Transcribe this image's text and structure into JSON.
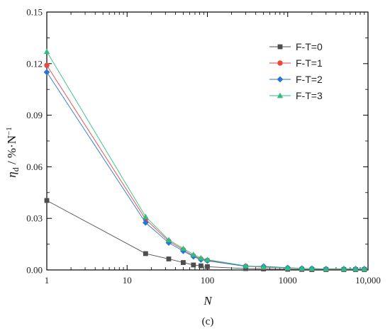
{
  "chart_data": {
    "type": "line",
    "x_scale": "log",
    "xlim": [
      1,
      10000
    ],
    "ylim": [
      0,
      0.15
    ],
    "xlabel": "N",
    "ylabel": "η_d / %·N⁻¹",
    "ylabel_parts": {
      "symbol": "η",
      "subscript": "d",
      "unit": " / %·N",
      "unit_sup": "−1"
    },
    "panel_label": "(c)",
    "grid": false,
    "legend_position": "top-right",
    "x_ticks": [
      {
        "value": 1,
        "label": "1"
      },
      {
        "value": 10,
        "label": "10"
      },
      {
        "value": 100,
        "label": "100"
      },
      {
        "value": 1000,
        "label": "1000"
      },
      {
        "value": 10000,
        "label": "10,000"
      }
    ],
    "y_ticks": [
      {
        "value": 0,
        "label": "0.00"
      },
      {
        "value": 0.03,
        "label": "0.03"
      },
      {
        "value": 0.06,
        "label": "0.06"
      },
      {
        "value": 0.09,
        "label": "0.09"
      },
      {
        "value": 0.12,
        "label": "0.12"
      },
      {
        "value": 0.15,
        "label": "0.15"
      }
    ],
    "series": [
      {
        "name": "F-T=0",
        "color": "#4d4d4d",
        "marker": "square",
        "x": [
          1,
          17,
          33,
          50,
          67,
          83,
          100,
          300,
          500,
          1000,
          1500,
          2000,
          3000,
          5000,
          7000,
          9000
        ],
        "y": [
          0.0404,
          0.0095,
          0.0064,
          0.0043,
          0.0029,
          0.0024,
          0.0019,
          0.0008,
          0.0006,
          0.0004,
          0.0003,
          0.0002,
          0.0002,
          0.0002,
          0.0002,
          0.0002
        ]
      },
      {
        "name": "F-T=1",
        "color": "#e8463e",
        "marker": "circle",
        "x": [
          1,
          17,
          33,
          50,
          67,
          83,
          100,
          300,
          500,
          1000,
          1500,
          2000,
          3000,
          5000,
          7000,
          9000
        ],
        "y": [
          0.119,
          0.0295,
          0.0168,
          0.0118,
          0.0082,
          0.0064,
          0.0056,
          0.0022,
          0.0016,
          0.0011,
          0.0008,
          0.0007,
          0.0005,
          0.0005,
          0.0005,
          0.0005
        ]
      },
      {
        "name": "F-T=2",
        "color": "#2a74d8",
        "marker": "diamond",
        "x": [
          1,
          17,
          33,
          50,
          67,
          83,
          100,
          300,
          500,
          1000,
          1500,
          2000,
          3000,
          5000,
          7000,
          9000
        ],
        "y": [
          0.115,
          0.0275,
          0.0158,
          0.011,
          0.0078,
          0.006,
          0.0053,
          0.0021,
          0.0021,
          0.0013,
          0.0009,
          0.0008,
          0.0006,
          0.0006,
          0.0006,
          0.0006
        ]
      },
      {
        "name": "F-T=3",
        "color": "#2cbf7f",
        "marker": "triangle",
        "x": [
          1,
          17,
          33,
          50,
          67,
          83,
          100,
          300,
          500,
          1000,
          1500,
          2000,
          3000,
          5000,
          7000,
          9000
        ],
        "y": [
          0.127,
          0.031,
          0.0175,
          0.0125,
          0.009,
          0.007,
          0.006,
          0.0024,
          0.0018,
          0.0012,
          0.0009,
          0.0008,
          0.0006,
          0.0006,
          0.0006,
          0.0006
        ]
      }
    ]
  }
}
